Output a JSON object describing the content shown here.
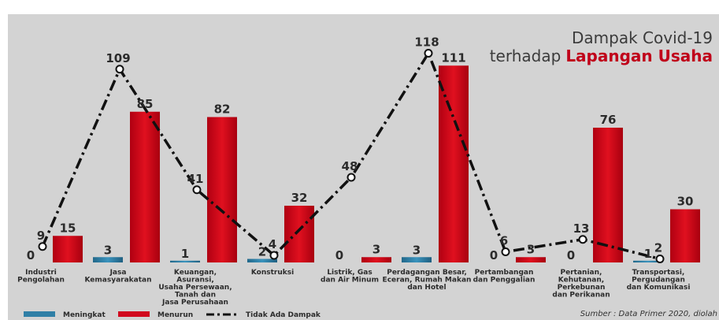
{
  "title": {
    "line1": "Dampak Covid-19",
    "line2_prefix": "terhadap",
    "line2_bold": "Lapangan Usaha"
  },
  "source": "Sumber : Data Primer 2020, diolah",
  "colors": {
    "meningkat": "#2f7fa6",
    "menurun": "#d1091e",
    "line": "#111111",
    "title_accent": "#c0001a"
  },
  "chart_data": {
    "type": "bar",
    "categories": [
      [
        "Industri",
        "Pengolahan"
      ],
      [
        "Jasa",
        "Kemasyarakatan"
      ],
      [
        "Keuangan,",
        "Asuransi,",
        "Usaha Persewaan,",
        "Tanah dan",
        "Jasa Perusahaan"
      ],
      [
        "Konstruksi"
      ],
      [
        "Listrik, Gas",
        "dan Air Minum"
      ],
      [
        "Perdagangan Besar,",
        "Eceran, Rumah Makan",
        "dan Hotel"
      ],
      [
        "Pertambangan",
        "dan Penggalian"
      ],
      [
        "Pertanian,",
        "Kehutanan,",
        "Perkebunan",
        "dan Perikanan"
      ],
      [
        "Transportasi,",
        "Pergudangan",
        "dan Komunikasi"
      ]
    ],
    "series": [
      {
        "name": "Meningkat",
        "kind": "bar",
        "values": [
          0,
          3,
          1,
          2,
          0,
          3,
          0,
          0,
          1
        ]
      },
      {
        "name": "Menurun",
        "kind": "bar",
        "values": [
          15,
          85,
          82,
          32,
          3,
          111,
          3,
          76,
          30
        ]
      },
      {
        "name": "Tidak Ada Dampak",
        "kind": "line",
        "values": [
          9,
          109,
          41,
          4,
          48,
          118,
          6,
          13,
          2
        ]
      }
    ],
    "legend": [
      "Meningkat",
      "Menurun",
      "Tidak Ada Dampak"
    ],
    "legend_position": "bottom-left"
  }
}
